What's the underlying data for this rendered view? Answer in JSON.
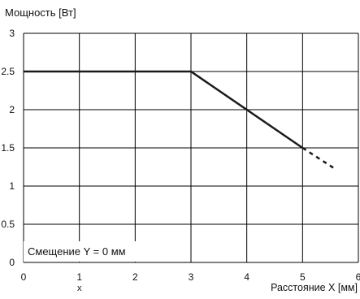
{
  "chart_data": {
    "type": "line",
    "ylabel": "Мощность [Вт]",
    "xlabel": "Расстояние X [мм]",
    "annotation": "Смещение Y = 0 мм",
    "stray_label": "x",
    "xlim": [
      0,
      6
    ],
    "ylim": [
      0,
      3
    ],
    "x_ticks": [
      "0",
      "1",
      "2",
      "3",
      "4",
      "5",
      "6"
    ],
    "y_ticks": [
      "0",
      "0.5",
      "1",
      "1.5",
      "2",
      "2.5",
      "3"
    ],
    "grid": true,
    "line_color": "#1a1a1a",
    "series": [
      {
        "style": "solid",
        "x": [
          0,
          3,
          5
        ],
        "y": [
          2.5,
          2.5,
          1.5
        ]
      },
      {
        "style": "dashed",
        "x": [
          5,
          5.55
        ],
        "y": [
          1.5,
          1.24
        ]
      }
    ]
  }
}
